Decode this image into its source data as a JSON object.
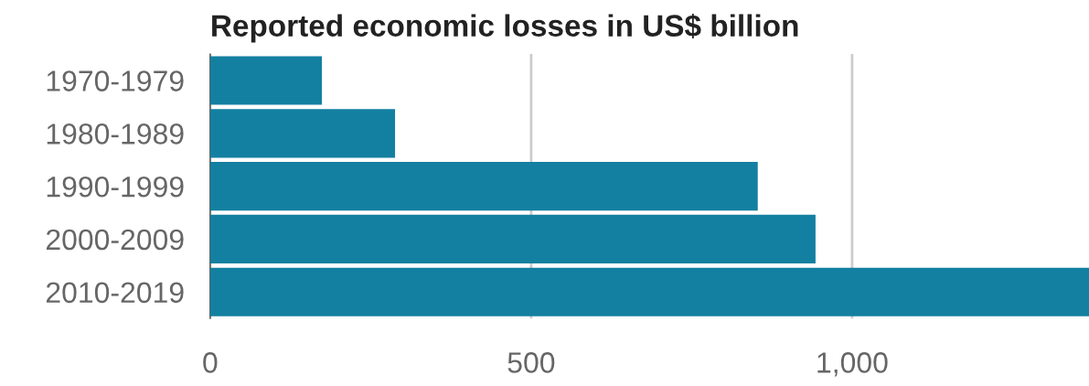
{
  "chart_data": {
    "type": "bar",
    "orientation": "horizontal",
    "title": "Reported economic losses in US$ billion",
    "categories": [
      "1970-1979",
      "1980-1989",
      "1990-1999",
      "2000-2009",
      "2010-2019"
    ],
    "values": [
      174,
      288,
      853,
      943,
      1369
    ],
    "color": "#1380a1",
    "xlim": [
      0,
      1369
    ],
    "xticks": [
      0,
      500,
      {
        "value": 1000,
        "label": "1,000"
      }
    ],
    "grid": "x"
  }
}
